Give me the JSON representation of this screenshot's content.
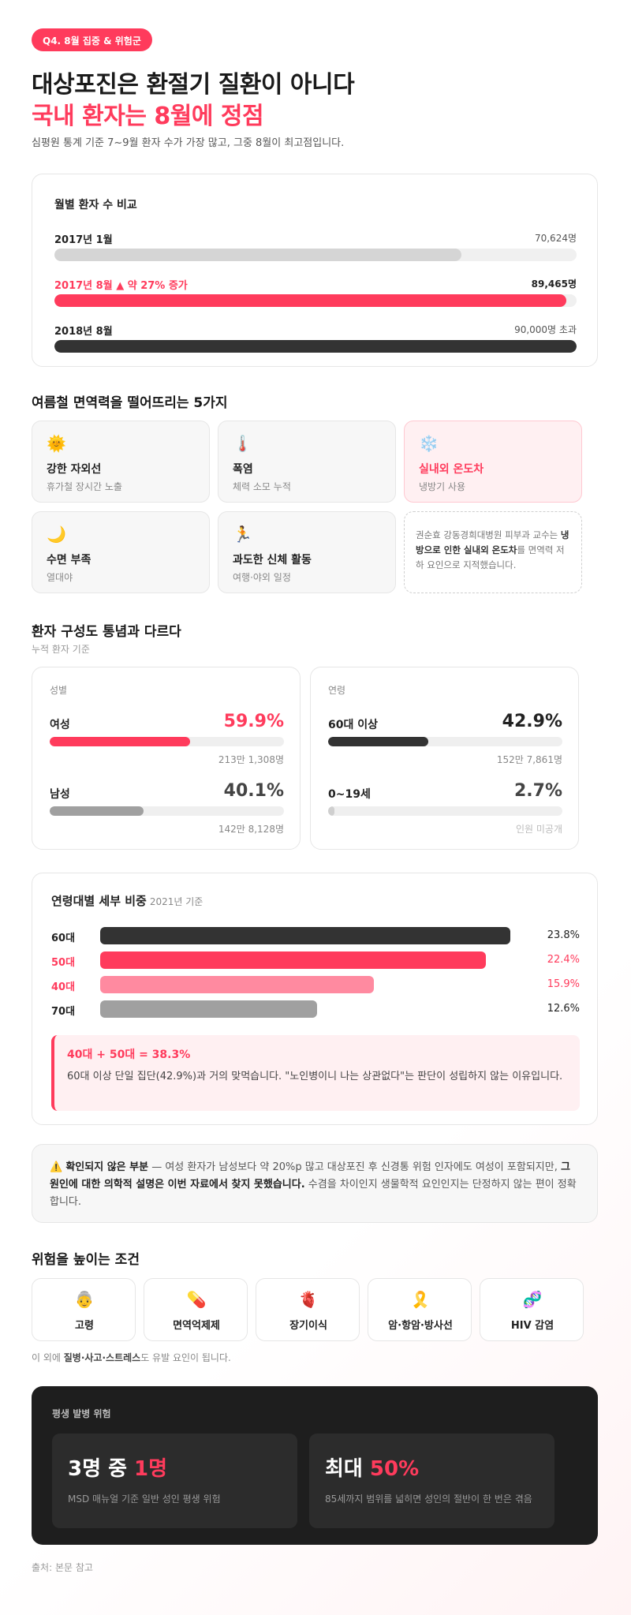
{
  "badge": "Q4. 8월 집중 & 위험군",
  "headline": "대상포진은 환절기 질환이 아니다",
  "headline_accent": "국내 환자는 8월에 정점",
  "lead": "심평원 통계 기준 7~9월 환자 수가 가장 많고, 그중 8월이 최고점입니다.",
  "monthly": {
    "title": "월별 환자 수 비교",
    "rows": [
      {
        "label": "2017년 1월",
        "value": "70,624명",
        "fraction": 0.78,
        "color": "#d5d5d5",
        "label_color": "#222"
      },
      {
        "label": "2017년 8월 ▲ 약 27% 증가",
        "value": "89,465명",
        "fraction": 0.98,
        "color": "#ff3b5c",
        "label_color": "#ff3b5c"
      },
      {
        "label": "2018년 8월",
        "value": "90,000명 초과",
        "fraction": 1.0,
        "color": "#333333",
        "label_color": "#222"
      }
    ]
  },
  "factors": {
    "title": "여름철 면역력을 떨어뜨리는 5가지",
    "items": [
      {
        "icon": "🌞",
        "title": "강한 자외선",
        "desc": "휴가철 장시간 노출"
      },
      {
        "icon": "🌡️",
        "title": "폭염",
        "desc": "체력 소모 누적"
      },
      {
        "icon": "❄️",
        "title": "실내외 온도차",
        "desc": "냉방기 사용"
      },
      {
        "icon": "🌙",
        "title": "수면 부족",
        "desc": "열대야"
      },
      {
        "icon": "🏃",
        "title": "과도한 신체 활동",
        "desc": "여행·야외 일정"
      }
    ],
    "quote_pre": "권순효 강동경희대병원 피부과 교수는 ",
    "quote_bold": "냉방으로 인한 실내외 온도차",
    "quote_post": "를 면역력 저하 요인으로 지적했습니다."
  },
  "composition": {
    "title": "환자 구성도 통념과 다르다",
    "subtitle": "누적 환자 기준",
    "gender": {
      "title": "성별",
      "items": [
        {
          "name": "여성",
          "pct": "59.9%",
          "count": "213만 1,308명",
          "fraction": 0.599,
          "color": "#ff3b5c",
          "pct_color": "#ff3b5c"
        },
        {
          "name": "남성",
          "pct": "40.1%",
          "count": "142만 8,128명",
          "fraction": 0.401,
          "color": "#a0a0a0",
          "pct_color": "#444"
        }
      ]
    },
    "age": {
      "title": "연령",
      "items": [
        {
          "name": "60대 이상",
          "pct": "42.9%",
          "count": "152만 7,861명",
          "fraction": 0.429,
          "color": "#333333",
          "pct_color": "#222"
        },
        {
          "name": "0~19세",
          "pct": "2.7%",
          "count": "인원 미공개",
          "fraction": 0.027,
          "color": "#cfcfcf",
          "pct_color": "#444"
        }
      ]
    }
  },
  "age_detail": {
    "title": "연령대별 세부 비중",
    "title_note": "2021년 기준",
    "rows": [
      {
        "label": "60대",
        "value": "23.8%",
        "v": 23.8,
        "color": "#333333",
        "text_color": "#222"
      },
      {
        "label": "50대",
        "value": "22.4%",
        "v": 22.4,
        "color": "#ff3b5c",
        "text_color": "#ff3b5c"
      },
      {
        "label": "40대",
        "value": "15.9%",
        "v": 15.9,
        "color": "#ff8aa0",
        "text_color": "#ff3b5c"
      },
      {
        "label": "70대",
        "value": "12.6%",
        "v": 12.6,
        "color": "#a0a0a0",
        "text_color": "#222"
      }
    ],
    "callout_title": "40대 + 50대 = 38.3%",
    "callout_body": "60대 이상 단일 집단(42.9%)과 거의 맞먹습니다. \"노인병이니 나는 상관없다\"는 판단이 성립하지 않는 이유입니다."
  },
  "warning": {
    "icon": "⚠️",
    "lead": "확인되지 않은 부분",
    "text1": " — 여성 환자가 남성보다 약 20%p 많고 대상포진 후 신경통 위험 인자에도 여성이 포함되지만, ",
    "bold": "그 원인에 대한 의학적 설명은 이번 자료에서 찾지 못했습니다.",
    "text2": " 수겸을 차이인지 생물학적 요인인지는 단정하지 않는 편이 정확합니다."
  },
  "risk": {
    "title": "위험을 높이는 조건",
    "items": [
      {
        "icon": "👵",
        "label": "고령"
      },
      {
        "icon": "💊",
        "label": "면역억제제"
      },
      {
        "icon": "🫀",
        "label": "장기이식"
      },
      {
        "icon": "🎗️",
        "label": "암·항암·방사선"
      },
      {
        "icon": "🧬",
        "label": "HIV 감염"
      }
    ],
    "note_pre": "이 외에 ",
    "note_bold": "질병·사고·스트레스",
    "note_post": "도 유발 요인이 됩니다."
  },
  "lifetime": {
    "title": "평생 발병 위험",
    "cards": [
      {
        "big_pre": "3명 중 ",
        "big_accent": "1명",
        "desc": "MSD 매뉴얼 기준 일반 성인 평생 위험"
      },
      {
        "big_pre": "최대 ",
        "big_accent": "50%",
        "desc": "85세까지 범위를 넓히면 성인의 절반이 한 번은 겪음"
      }
    ]
  },
  "source": "출처: 본문 참고",
  "colors": {
    "accent": "#ff3b5c",
    "dark": "#1e1e1e"
  }
}
